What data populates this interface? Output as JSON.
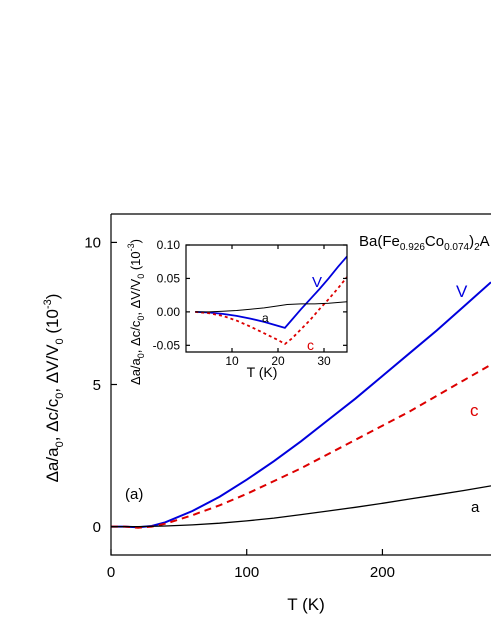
{
  "chart_data": [
    {
      "type": "line",
      "panel_label": "(a)",
      "title": "Ba(Fe0.926Co0.074)2A",
      "title_parts": {
        "base": "Ba(Fe",
        "sub1": "0.926",
        "mid": "Co",
        "sub2": "0.074",
        "close": ")",
        "sub3": "2",
        "tail": "A"
      },
      "xlabel": "T (K)",
      "ylabel": "Δa/a0, Δc/c0, ΔV/V0 (10-3)",
      "ylabel_parts": {
        "p1": "Δa/a",
        "s1": "0",
        "p2": ", Δc/c",
        "s2": "0",
        "p3": ", ΔV/V",
        "s3": "0",
        "p4": " (10",
        "sup": "-3",
        "p5": ")"
      },
      "xlim": [
        0,
        280
      ],
      "ylim": [
        -1.0,
        11.0
      ],
      "xticks": [
        0,
        100,
        200
      ],
      "yticks": [
        0,
        5,
        10
      ],
      "xtick_labels": [
        "0",
        "100",
        "200"
      ],
      "ytick_labels": [
        "0",
        "5",
        "10"
      ],
      "grid": false,
      "series": [
        {
          "name": "V",
          "color": "#0000dd",
          "dash": "solid",
          "x": [
            0,
            10,
            20,
            30,
            40,
            60,
            80,
            100,
            120,
            140,
            160,
            180,
            200,
            220,
            240,
            260,
            280
          ],
          "y": [
            0.0,
            0.0,
            -0.02,
            0.02,
            0.15,
            0.55,
            1.05,
            1.65,
            2.3,
            3.0,
            3.75,
            4.5,
            5.3,
            6.1,
            6.9,
            7.75,
            8.6
          ]
        },
        {
          "name": "c",
          "color": "#dd0000",
          "dash": "dashed",
          "x": [
            0,
            10,
            20,
            30,
            40,
            60,
            80,
            100,
            120,
            140,
            160,
            180,
            200,
            220,
            240,
            260,
            280
          ],
          "y": [
            0.0,
            0.0,
            -0.04,
            0.0,
            0.1,
            0.4,
            0.75,
            1.15,
            1.6,
            2.05,
            2.55,
            3.05,
            3.55,
            4.05,
            4.6,
            5.15,
            5.7
          ]
        },
        {
          "name": "a",
          "color": "#000000",
          "dash": "solid",
          "x": [
            0,
            20,
            40,
            60,
            80,
            100,
            120,
            140,
            160,
            180,
            200,
            220,
            240,
            260,
            280
          ],
          "y": [
            0.0,
            0.0,
            0.02,
            0.06,
            0.12,
            0.2,
            0.3,
            0.42,
            0.55,
            0.68,
            0.82,
            0.97,
            1.12,
            1.27,
            1.43
          ]
        }
      ]
    },
    {
      "type": "line",
      "inset": true,
      "xlabel": "T (K)",
      "ylabel": "Δa/a0, Δc/c0, ΔV/V0 (10-3)",
      "ylabel_parts": {
        "p1": "Δa/a",
        "s1": "0",
        "p2": ", Δc/c",
        "s2": "0",
        "p3": ", ΔV/V",
        "s3": "0",
        "p4": " (10",
        "sup": "-3",
        "p5": ")"
      },
      "xlim": [
        0,
        35
      ],
      "ylim": [
        -0.06,
        0.1
      ],
      "xticks": [
        10,
        20,
        30
      ],
      "yticks": [
        0.1,
        0.05,
        0.0,
        -0.05
      ],
      "xtick_labels": [
        "10",
        "20",
        "30"
      ],
      "ytick_labels": [
        "0.10",
        "0.05",
        "0.00",
        "-0.05"
      ],
      "grid": false,
      "series": [
        {
          "name": "V",
          "color": "#0000dd",
          "dash": "solid",
          "x": [
            2,
            5,
            8,
            11,
            14,
            17,
            20,
            21.5,
            23,
            25,
            27,
            29,
            31,
            33,
            35
          ],
          "y": [
            0.0,
            -0.001,
            -0.003,
            -0.006,
            -0.01,
            -0.015,
            -0.021,
            -0.024,
            -0.012,
            0.004,
            0.019,
            0.034,
            0.05,
            0.067,
            0.083
          ]
        },
        {
          "name": "c",
          "color": "#dd0000",
          "dash": "dashed",
          "x": [
            2,
            5,
            8,
            11,
            14,
            17,
            20,
            21.5,
            23,
            25,
            27,
            29,
            31,
            33,
            35
          ],
          "y": [
            0.0,
            -0.002,
            -0.006,
            -0.013,
            -0.022,
            -0.032,
            -0.042,
            -0.048,
            -0.04,
            -0.026,
            -0.012,
            0.004,
            0.019,
            0.035,
            0.052
          ]
        },
        {
          "name": "a",
          "color": "#000000",
          "dash": "solid",
          "x": [
            2,
            5,
            8,
            11,
            14,
            17,
            20,
            22,
            25,
            28,
            31,
            35
          ],
          "y": [
            0.0,
            0.0,
            0.001,
            0.002,
            0.004,
            0.006,
            0.009,
            0.011,
            0.012,
            0.012,
            0.013,
            0.015
          ]
        }
      ]
    }
  ]
}
